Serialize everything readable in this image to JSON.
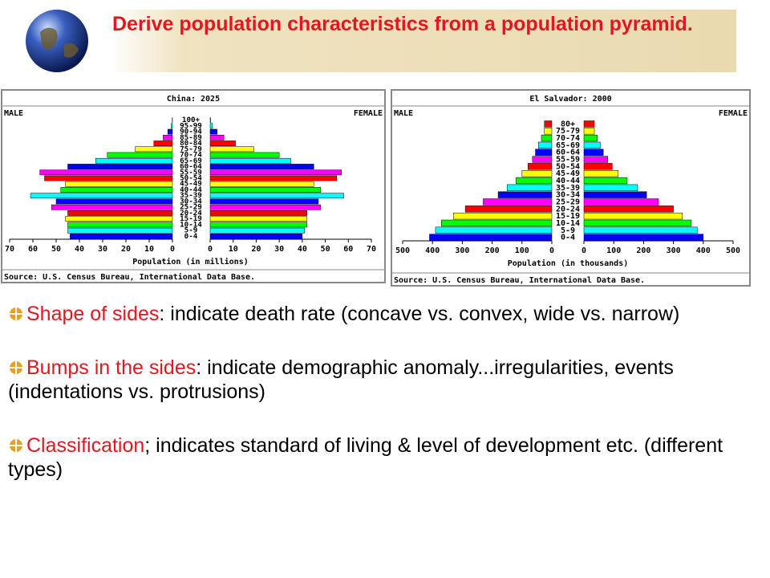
{
  "title": "Derive population characteristics from a population pyramid.",
  "bullets": [
    {
      "term": "Shape of sides",
      "text": ": indicate death rate (concave vs. convex, wide vs. narrow)"
    },
    {
      "term": "Bumps in the sides",
      "text": ": indicate demographic anomaly...irregularities, events (indentations vs. protrusions)"
    },
    {
      "term": "Classification",
      "text": "; indicates standard of living & level of development etc. (different types)"
    }
  ],
  "chart_data": [
    {
      "type": "pyramid",
      "title": "China: 2025",
      "xlabel": "Population (in millions)",
      "source": "Source: U.S. Census Bureau, International Data Base.",
      "categories": [
        "0-4",
        "5-9",
        "10-14",
        "15-19",
        "20-24",
        "25-29",
        "30-34",
        "35-39",
        "40-44",
        "45-49",
        "50-54",
        "55-59",
        "60-64",
        "65-69",
        "70-74",
        "75-79",
        "80-84",
        "85-89",
        "90-94",
        "95-99",
        "100+"
      ],
      "series": [
        {
          "name": "MALE",
          "values": [
            44,
            45,
            45,
            46,
            45,
            52,
            50,
            61,
            48,
            46,
            55,
            57,
            45,
            33,
            28,
            16,
            8,
            4,
            2,
            0.5,
            0.1
          ]
        },
        {
          "name": "FEMALE",
          "values": [
            40,
            41,
            42,
            42,
            42,
            48,
            47,
            58,
            48,
            45,
            55,
            57,
            45,
            35,
            30,
            19,
            11,
            6,
            3,
            1,
            0.2
          ]
        }
      ],
      "colors": [
        "#0000ff",
        "#00ffff",
        "#00ff00",
        "#ffff00",
        "#ff0000",
        "#ff00ff"
      ],
      "xlim": [
        0,
        70
      ],
      "xticks": [
        0,
        10,
        20,
        30,
        40,
        50,
        60,
        70
      ]
    },
    {
      "type": "pyramid",
      "title": "El Salvador: 2000",
      "xlabel": "Population (in thousands)",
      "source": "Source: U.S. Census Bureau, International Data Base.",
      "categories": [
        "0-4",
        "5-9",
        "10-14",
        "15-19",
        "20-24",
        "25-29",
        "30-34",
        "35-39",
        "40-44",
        "45-49",
        "50-54",
        "55-59",
        "60-64",
        "65-69",
        "70-74",
        "75-79",
        "80+"
      ],
      "series": [
        {
          "name": "MALE",
          "values": [
            410,
            390,
            370,
            330,
            290,
            230,
            180,
            150,
            120,
            100,
            80,
            65,
            55,
            45,
            35,
            25,
            25
          ]
        },
        {
          "name": "FEMALE",
          "values": [
            400,
            380,
            360,
            330,
            300,
            250,
            210,
            180,
            145,
            115,
            95,
            80,
            65,
            55,
            45,
            35,
            35
          ]
        }
      ],
      "colors": [
        "#0000ff",
        "#00ffff",
        "#00ff00",
        "#ffff00",
        "#ff0000",
        "#ff00ff"
      ],
      "xlim": [
        0,
        500
      ],
      "xticks": [
        0,
        100,
        200,
        300,
        400,
        500
      ]
    }
  ]
}
